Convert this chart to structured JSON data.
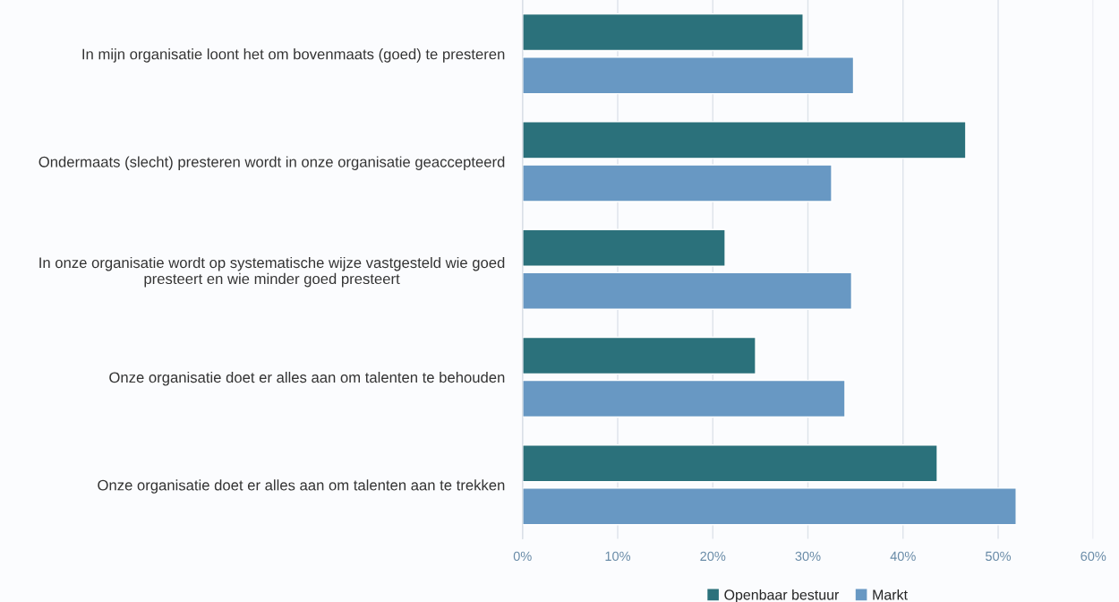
{
  "chart_data": {
    "type": "bar",
    "orientation": "horizontal",
    "categories": [
      "In mijn organisatie loont het om bovenmaats (goed) te presteren",
      "Ondermaats (slecht) presteren wordt in onze organisatie geaccepteerd",
      "In onze organisatie wordt op systematische wijze vastgesteld wie goed\npresteert en wie minder goed presteert",
      "Onze organisatie doet er alles aan om talenten te behouden",
      "Onze organisatie doet er alles aan om talenten aan te trekken"
    ],
    "series": [
      {
        "name": "Openbaar bestuur",
        "color": "#2b717b",
        "values": [
          29.5,
          46.6,
          21.3,
          24.5,
          43.6
        ]
      },
      {
        "name": "Markt",
        "color": "#6898c3",
        "values": [
          34.8,
          32.5,
          34.6,
          33.9,
          51.9
        ]
      }
    ],
    "xlim": [
      0,
      60
    ],
    "xticks": [
      {
        "value": 0,
        "label": "0%"
      },
      {
        "value": 10,
        "label": "10%"
      },
      {
        "value": 20,
        "label": "20%"
      },
      {
        "value": 30,
        "label": "30%"
      },
      {
        "value": 40,
        "label": "40%"
      },
      {
        "value": 50,
        "label": "50%"
      },
      {
        "value": 60,
        "label": "60%"
      }
    ],
    "grid": "x",
    "legend": "bottom"
  }
}
